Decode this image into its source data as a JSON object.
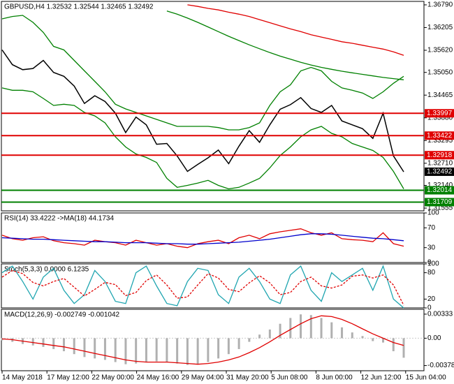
{
  "chart_data": [
    {
      "type": "line",
      "title": "GBPUSD,H4  1.32532 1.32544 1.32465 1.32492",
      "ylim": [
        1.31484,
        1.36879
      ],
      "yticks": [
        {
          "value": 1.3679,
          "label": "1.36790"
        },
        {
          "value": 1.36205,
          "label": "1.36205"
        },
        {
          "value": 1.3562,
          "label": "1.35620"
        },
        {
          "value": 1.3505,
          "label": "1.35050"
        },
        {
          "value": 1.34465,
          "label": "1.34465"
        },
        {
          "value": 1.3388,
          "label": "1.33880"
        },
        {
          "value": 1.33295,
          "label": "1.33295"
        },
        {
          "value": 1.3271,
          "label": "1.32710"
        },
        {
          "value": 1.3214,
          "label": "1.32140"
        },
        {
          "value": 1.31555,
          "label": "1.31555"
        }
      ],
      "series": [
        {
          "color": "#e00000",
          "values": [
            null,
            null,
            null,
            null,
            null,
            null,
            null,
            null,
            null,
            null,
            null,
            null,
            null,
            null,
            null,
            null,
            null,
            null,
            1.3679,
            1.3675,
            1.367,
            1.3666,
            1.366,
            1.3655,
            1.3649,
            1.3641,
            1.3633,
            1.3625,
            1.3617,
            1.361,
            1.3602,
            1.3596,
            1.359,
            1.3584,
            1.358,
            1.3575,
            1.357,
            1.3565,
            1.3558,
            1.3549
          ]
        },
        {
          "color": "#008000",
          "values": [
            null,
            null,
            null,
            null,
            null,
            null,
            null,
            null,
            null,
            null,
            null,
            null,
            null,
            null,
            null,
            null,
            1.3663,
            1.3655,
            1.3645,
            1.3634,
            1.3622,
            1.361,
            1.3598,
            1.3587,
            1.3576,
            1.3566,
            1.3556,
            1.3547,
            1.3539,
            1.3531,
            1.3524,
            1.3518,
            1.3513,
            1.3508,
            1.3504,
            1.35,
            1.3496,
            1.3492,
            1.3489,
            1.3486
          ]
        },
        {
          "color": "#008000",
          "values": [
            1.3643,
            1.3649,
            1.3652,
            1.3634,
            1.3608,
            1.3572,
            1.3563,
            1.3536,
            1.3509,
            1.3482,
            1.3455,
            1.3423,
            1.3411,
            1.3402,
            1.3393,
            1.3384,
            1.3375,
            1.3366,
            1.3366,
            1.3366,
            1.3366,
            1.3363,
            1.3357,
            1.3357,
            1.3363,
            1.3375,
            1.342,
            1.3455,
            1.3473,
            1.3509,
            1.3518,
            1.3509,
            1.3482,
            1.3465,
            1.3459,
            1.3452,
            1.3438,
            1.3455,
            1.3477,
            1.3495
          ]
        },
        {
          "color": "#008000",
          "values": [
            1.3465,
            1.3459,
            1.3459,
            1.3455,
            1.3438,
            1.342,
            1.3423,
            1.342,
            1.3402,
            1.3393,
            1.3375,
            1.3339,
            1.3313,
            1.3295,
            1.3286,
            1.3273,
            1.3232,
            1.3209,
            1.3214,
            1.322,
            1.3227,
            1.3214,
            1.3205,
            1.3209,
            1.322,
            1.3232,
            1.3259,
            1.3291,
            1.3313,
            1.3339,
            1.3357,
            1.3366,
            1.3348,
            1.3339,
            1.3322,
            1.3313,
            1.3304,
            1.3286,
            1.325,
            1.3205
          ]
        },
        {
          "color": "#000000",
          "values": [
            1.3563,
            1.3525,
            1.3512,
            1.3515,
            1.3536,
            1.3505,
            1.3495,
            1.347,
            1.3425,
            1.3445,
            1.343,
            1.34,
            1.335,
            1.339,
            1.337,
            1.332,
            1.3322,
            1.329,
            1.325,
            1.3268,
            1.3285,
            1.3305,
            1.327,
            1.3315,
            1.3355,
            1.3325,
            1.337,
            1.341,
            1.3422,
            1.344,
            1.3412,
            1.3402,
            1.342,
            1.338,
            1.337,
            1.336,
            1.3335,
            1.34,
            1.329,
            1.3249
          ]
        }
      ],
      "levels": [
        {
          "value": 1.33997,
          "color": "#e00000"
        },
        {
          "value": 1.33422,
          "color": "#e00000"
        },
        {
          "value": 1.32918,
          "color": "#e00000"
        },
        {
          "value": 1.32014,
          "color": "#008000"
        },
        {
          "value": 1.31709,
          "color": "#008000"
        }
      ],
      "last_price": 1.32492
    },
    {
      "type": "line",
      "title": "RSI(14) 33.4222  ->MA(18) 44.1734",
      "ylim": [
        0,
        100
      ],
      "yticks": [
        0,
        30,
        70,
        100
      ],
      "series": [
        {
          "color": "#e00000",
          "values": [
            55,
            48,
            45,
            50,
            52,
            44,
            40,
            38,
            35,
            45,
            42,
            40,
            35,
            45,
            40,
            35,
            38,
            33,
            30,
            38,
            42,
            45,
            38,
            50,
            55,
            48,
            58,
            62,
            65,
            68,
            60,
            55,
            60,
            48,
            46,
            45,
            42,
            60,
            38,
            33
          ]
        },
        {
          "color": "#0000cc",
          "values": [
            50,
            49,
            48,
            47,
            47,
            46,
            45,
            44,
            43,
            42,
            42,
            41,
            40,
            40,
            40,
            39,
            38,
            38,
            37,
            37,
            38,
            39,
            40,
            41,
            43,
            45,
            47,
            50,
            53,
            56,
            58,
            58,
            57,
            55,
            53,
            51,
            49,
            48,
            46,
            44
          ]
        }
      ]
    },
    {
      "type": "line",
      "title": "Stoch(5,3,3) 0.0000 6.1235",
      "ylim": [
        0,
        100
      ],
      "yticks": [
        0,
        20,
        80,
        100
      ],
      "series": [
        {
          "color": "#1fa5b0",
          "values": [
            80,
            95,
            60,
            20,
            70,
            90,
            40,
            10,
            30,
            85,
            60,
            15,
            10,
            80,
            95,
            50,
            10,
            5,
            60,
            90,
            85,
            30,
            10,
            70,
            90,
            60,
            20,
            10,
            75,
            95,
            40,
            15,
            80,
            60,
            75,
            90,
            40,
            95,
            20,
            0
          ]
        },
        {
          "color": "#e00000",
          "dashed": true,
          "values": [
            70,
            85,
            78,
            58,
            50,
            60,
            67,
            47,
            27,
            42,
            58,
            53,
            28,
            35,
            62,
            75,
            52,
            22,
            25,
            52,
            78,
            68,
            42,
            37,
            57,
            73,
            57,
            30,
            35,
            60,
            70,
            50,
            45,
            52,
            72,
            75,
            68,
            75,
            52,
            6
          ]
        }
      ]
    },
    {
      "type": "macd",
      "title": "MACD(12,26,9) -0.002749 -0.001042",
      "ylim": [
        -0.0045,
        0.004
      ],
      "yticks": [
        0.00333,
        {
          "value": 0,
          "label": "0.00"
        },
        -0.003784
      ],
      "series": [
        {
          "color": "#b0b0b0",
          "style": "histogram",
          "values": [
            -0.0003,
            -0.0005,
            -0.0008,
            -0.001,
            -0.0012,
            -0.0015,
            -0.0018,
            -0.0022,
            -0.0026,
            -0.0028,
            -0.003,
            -0.0033,
            -0.0036,
            -0.0035,
            -0.0033,
            -0.0032,
            -0.0033,
            -0.0035,
            -0.0037,
            -0.0036,
            -0.0033,
            -0.0028,
            -0.0022,
            -0.0015,
            -0.0005,
            0.0005,
            0.0012,
            0.002,
            0.0028,
            0.0033,
            0.0032,
            0.0028,
            0.0022,
            0.0015,
            0.0008,
            0.0003,
            -0.0004,
            -0.0006,
            -0.0018,
            -0.0027
          ]
        },
        {
          "color": "#e00000",
          "style": "line",
          "values": [
            -0.0001,
            -0.0002,
            -0.0004,
            -0.0006,
            -0.0008,
            -0.001,
            -0.0012,
            -0.0015,
            -0.0018,
            -0.0021,
            -0.0024,
            -0.0027,
            -0.003,
            -0.0032,
            -0.0033,
            -0.0033,
            -0.0033,
            -0.0034,
            -0.0035,
            -0.0036,
            -0.0035,
            -0.0033,
            -0.003,
            -0.0026,
            -0.002,
            -0.0013,
            -0.0005,
            0.0004,
            0.0012,
            0.002,
            0.0027,
            0.0031,
            0.003,
            0.0026,
            0.002,
            0.0013,
            0.0006,
            0,
            -0.0006,
            -0.001
          ]
        }
      ]
    }
  ],
  "time_axis": {
    "labels": [
      "14 May 2018",
      "17 May 12:00",
      "22 May 00:00",
      "24 May 16:00",
      "29 May 04:00",
      "31 May 20:00",
      "5 Jun 08:00",
      "8 Jun 00:00",
      "12 Jun 12:00",
      "15 Jun 04:00"
    ]
  }
}
